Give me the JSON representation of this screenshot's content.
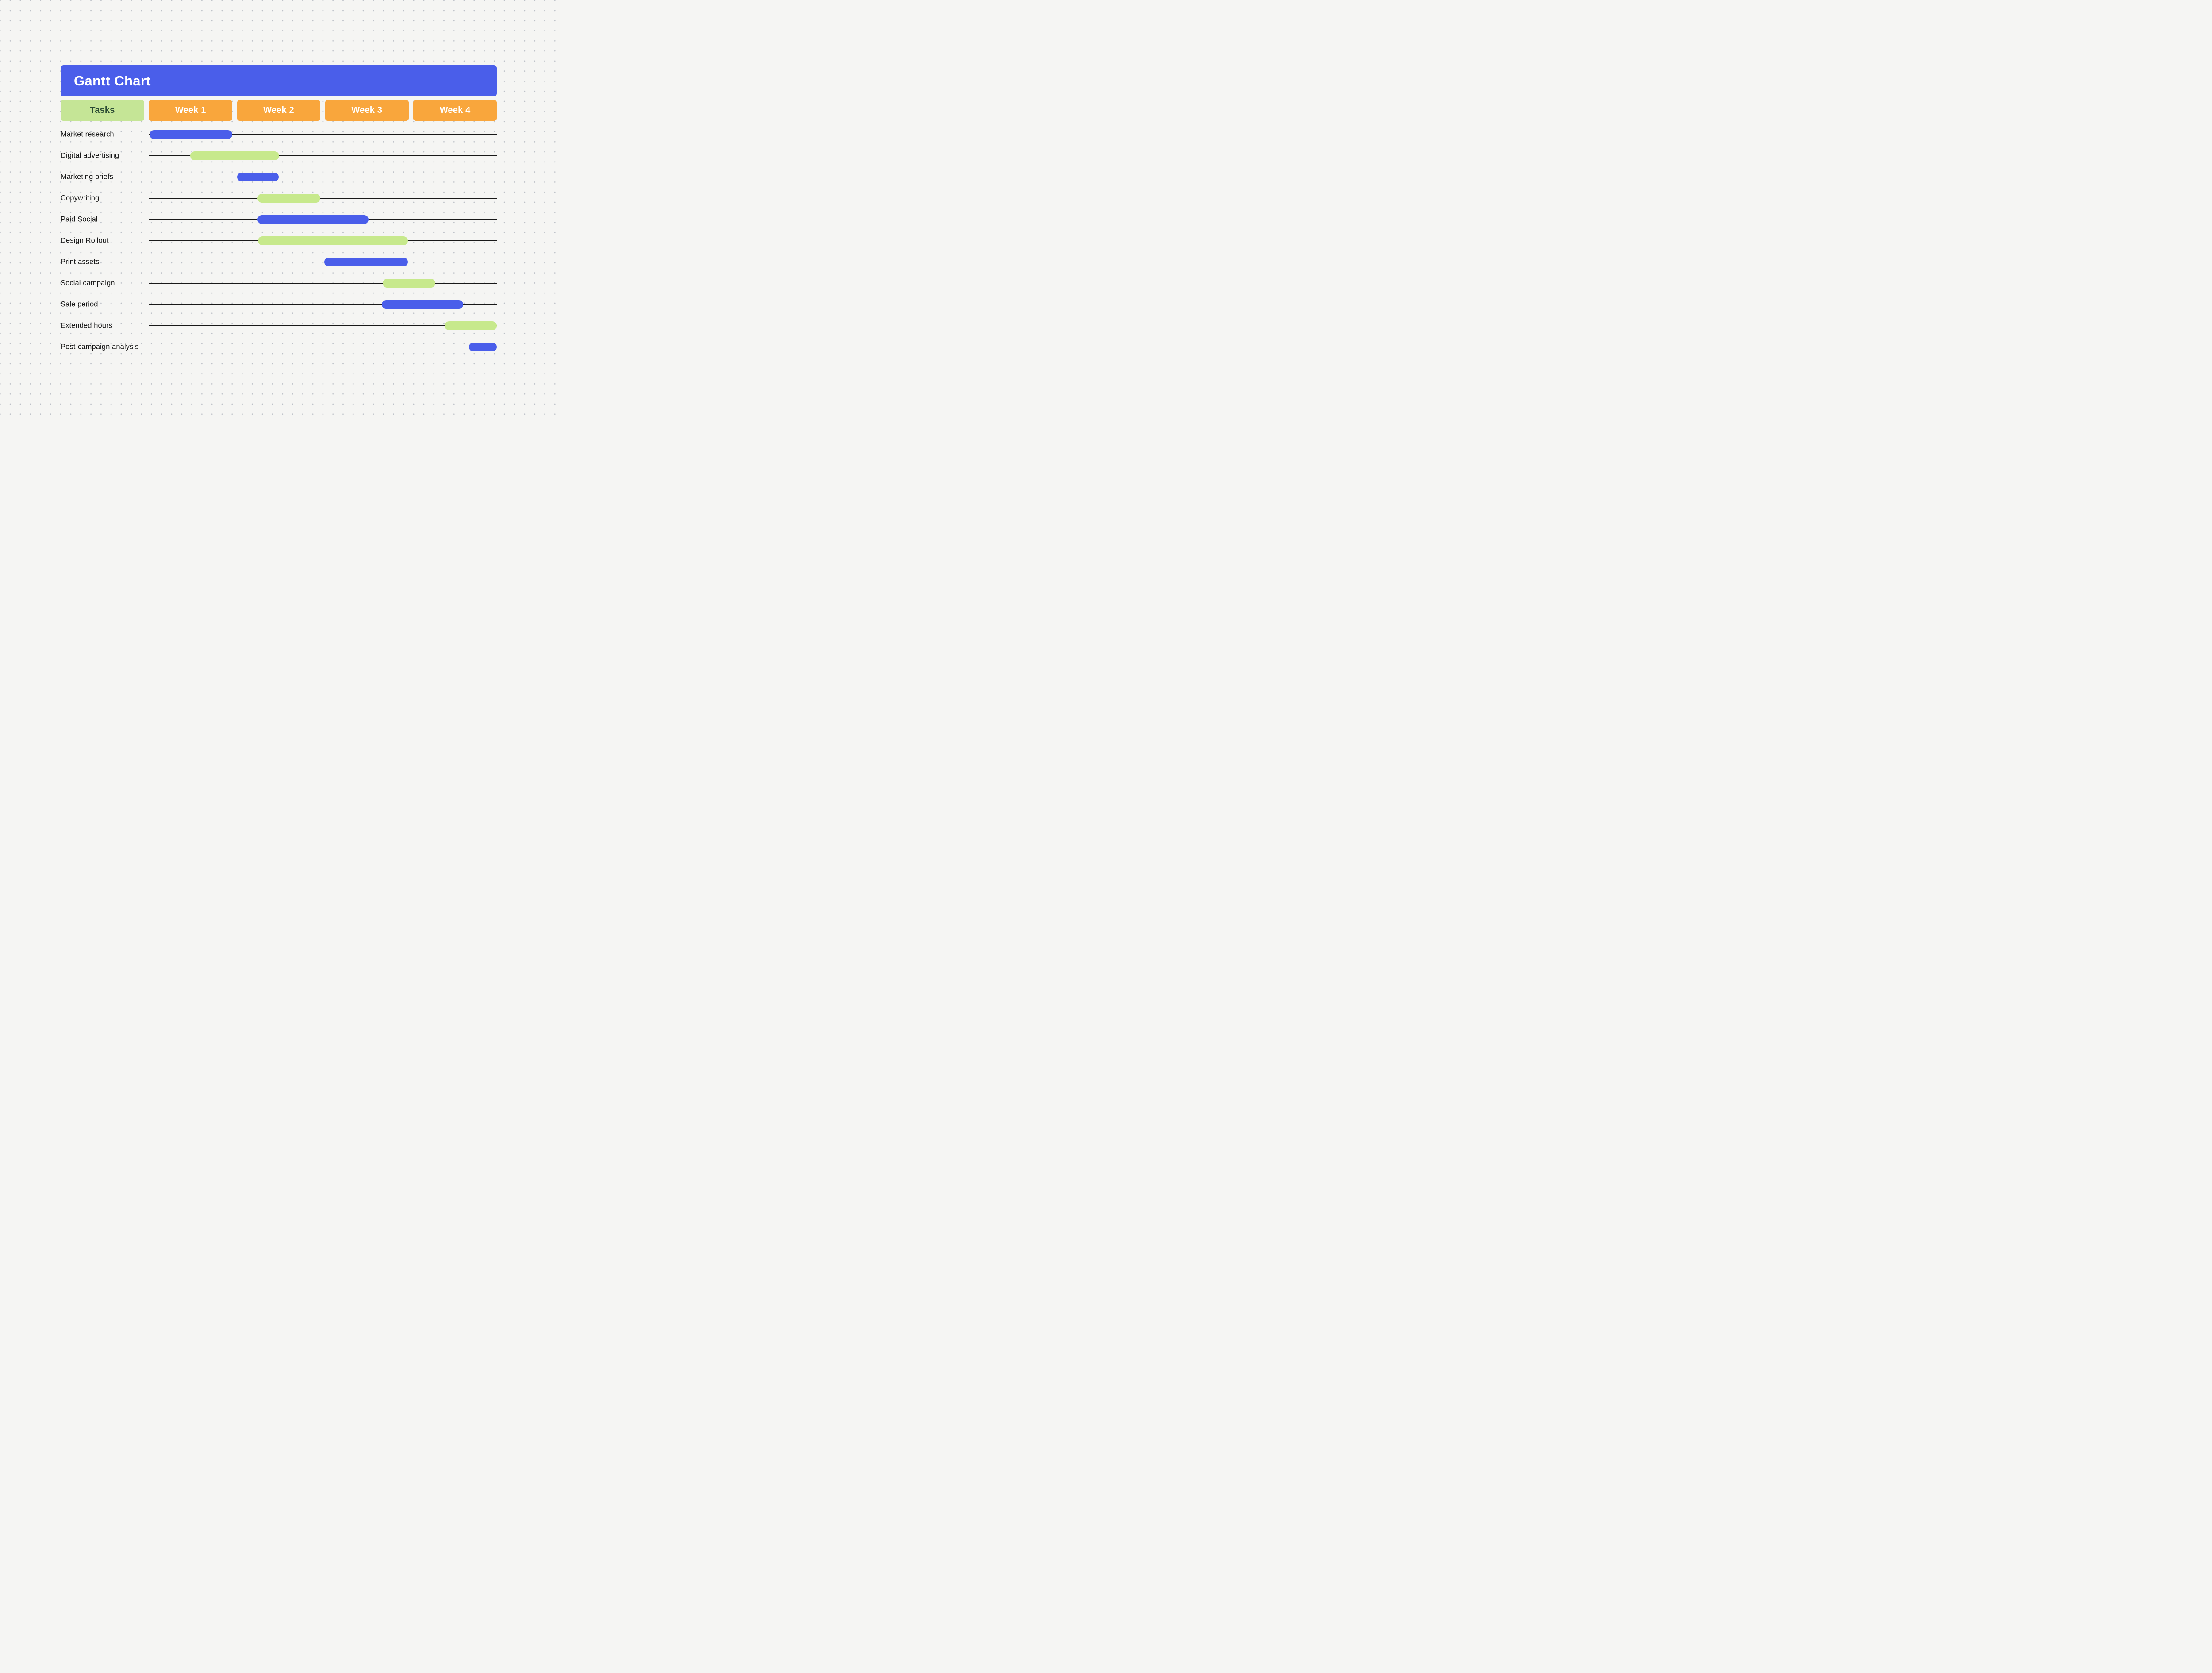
{
  "title": "Gantt Chart",
  "header": {
    "tasks_label": "Tasks",
    "weeks": [
      "Week 1",
      "Week 2",
      "Week 3",
      "Week 4"
    ]
  },
  "colors": {
    "background": "#F5F5F3",
    "dot_grid": "#BCC0C7",
    "title_bar": "#4A5EEA",
    "title_text": "#FFFFFF",
    "week_header": "#F9A63C",
    "week_header_text": "#FFFFFF",
    "tasks_header": "#C5E596",
    "tasks_header_text": "#2B4B34",
    "bar_blue": "#4A5EEA",
    "bar_green": "#C7E98C",
    "row_line": "#191919",
    "label_text": "#161616"
  },
  "chart_data": {
    "type": "gantt",
    "title": "Gantt Chart",
    "x_axis": {
      "unit": "weeks",
      "categories": [
        "Week 1",
        "Week 2",
        "Week 3",
        "Week 4"
      ],
      "range": [
        0,
        4
      ]
    },
    "legend": "none",
    "tasks": [
      {
        "name": "Market research",
        "color": "blue",
        "start_week": 0.0,
        "end_week": 0.95,
        "start_pct": 0.3,
        "end_pct": 24.1
      },
      {
        "name": "Digital advertising",
        "color": "green",
        "start_week": 0.5,
        "end_week": 1.5,
        "start_pct": 12.0,
        "end_pct": 37.5
      },
      {
        "name": "Marketing briefs",
        "color": "blue",
        "start_week": 1.0,
        "end_week": 1.5,
        "start_pct": 25.4,
        "end_pct": 37.4
      },
      {
        "name": "Copywriting",
        "color": "green",
        "start_week": 1.25,
        "end_week": 2.0,
        "start_pct": 31.3,
        "end_pct": 49.3
      },
      {
        "name": "Paid Social",
        "color": "blue",
        "start_week": 1.25,
        "end_week": 2.55,
        "start_pct": 31.3,
        "end_pct": 63.2
      },
      {
        "name": "Design Rollout",
        "color": "green",
        "start_week": 1.25,
        "end_week": 3.0,
        "start_pct": 31.4,
        "end_pct": 74.5
      },
      {
        "name": "Print assets",
        "color": "blue",
        "start_week": 2.0,
        "end_week": 3.0,
        "start_pct": 50.5,
        "end_pct": 74.5
      },
      {
        "name": "Social campaign",
        "color": "green",
        "start_week": 2.7,
        "end_week": 3.3,
        "start_pct": 67.2,
        "end_pct": 82.4
      },
      {
        "name": "Sale period",
        "color": "blue",
        "start_week": 2.7,
        "end_week": 3.6,
        "start_pct": 67.0,
        "end_pct": 90.3
      },
      {
        "name": "Extended hours",
        "color": "green",
        "start_week": 3.4,
        "end_week": 4.0,
        "start_pct": 85.0,
        "end_pct": 100
      },
      {
        "name": "Post-campaign analysis",
        "color": "blue",
        "start_week": 3.7,
        "end_week": 4.0,
        "start_pct": 92.0,
        "end_pct": 100
      }
    ]
  }
}
